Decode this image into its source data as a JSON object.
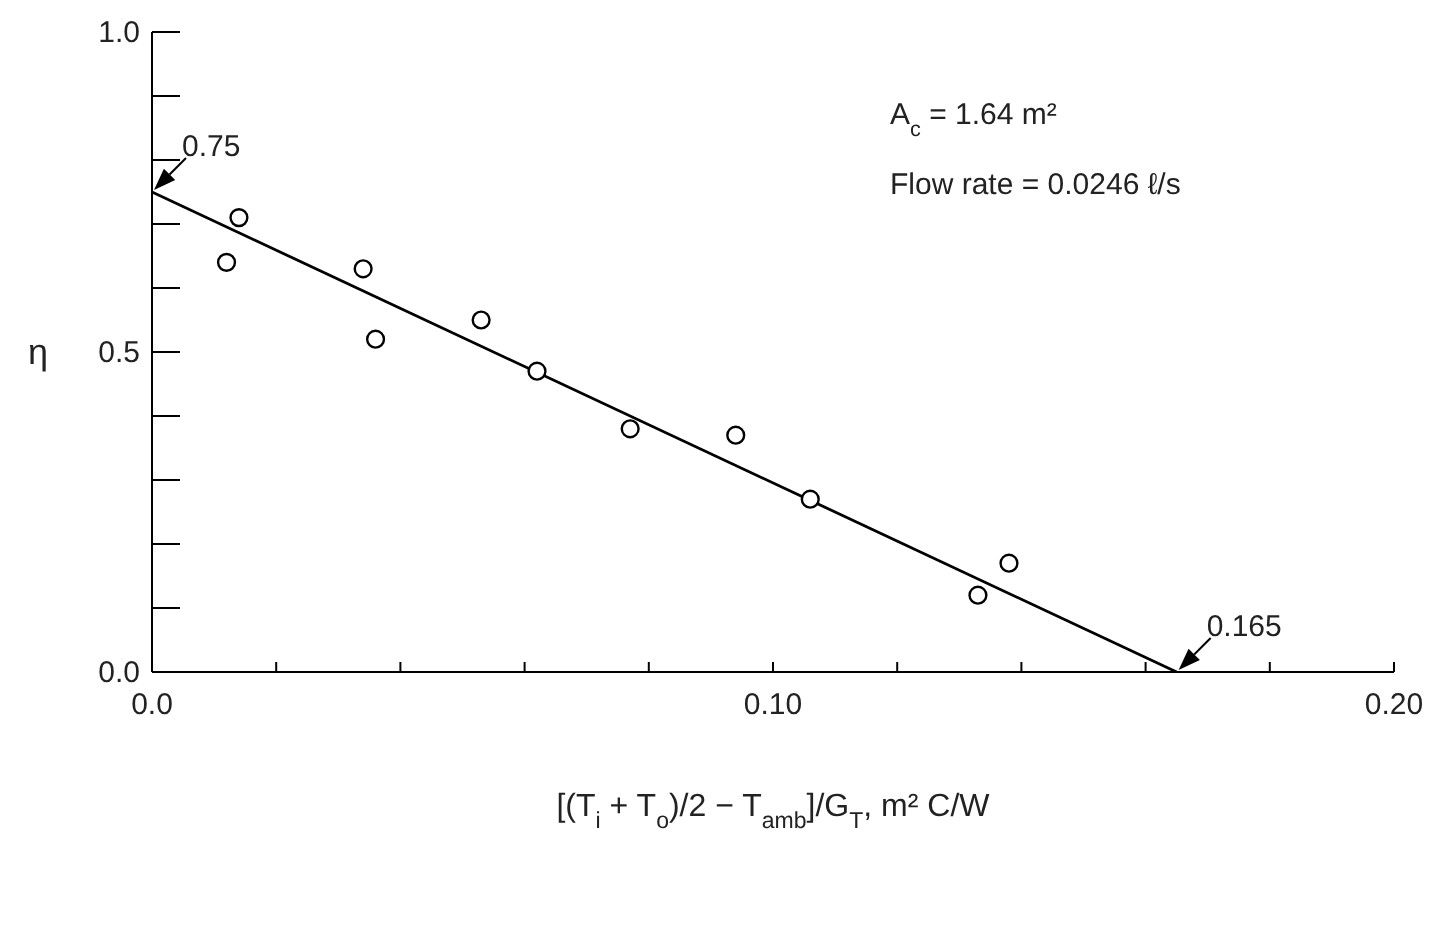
{
  "chart_data": {
    "type": "scatter",
    "xlabel": "[(T$_{i}$ + T$_{o}$)/2 − T$_{amb}$]/G$_{T}$, m² C/W",
    "ylabel": "η",
    "xlim": [
      0,
      0.2
    ],
    "ylim": [
      0,
      1
    ],
    "xticks": [
      {
        "value": 0,
        "label": "0.0"
      },
      {
        "value": 0.02,
        "label": null
      },
      {
        "value": 0.04,
        "label": null
      },
      {
        "value": 0.06,
        "label": null
      },
      {
        "value": 0.08,
        "label": null
      },
      {
        "value": 0.1,
        "label": "0.10"
      },
      {
        "value": 0.12,
        "label": null
      },
      {
        "value": 0.14,
        "label": null
      },
      {
        "value": 0.16,
        "label": null
      },
      {
        "value": 0.18,
        "label": null
      },
      {
        "value": 0.2,
        "label": "0.20"
      }
    ],
    "yticks": [
      {
        "value": 0,
        "label": "0.0"
      },
      {
        "value": 0.1,
        "label": null
      },
      {
        "value": 0.2,
        "label": null
      },
      {
        "value": 0.3,
        "label": null
      },
      {
        "value": 0.4,
        "label": null
      },
      0.5,
      {
        "value": 0.6,
        "label": null
      },
      {
        "value": 0.7,
        "label": null
      },
      {
        "value": 0.8,
        "label": null
      },
      {
        "value": 0.9,
        "label": null
      },
      {
        "value": 1,
        "label": "1.0"
      }
    ],
    "series": [
      {
        "type": "scatter",
        "color": "#000000",
        "marker": "circle",
        "x": [
          0.012,
          0.014,
          0.034,
          0.036,
          0.053,
          0.062,
          0.077,
          0.094,
          0.106,
          0.133,
          0.138
        ],
        "values": [
          0.64,
          0.71,
          0.63,
          0.52,
          0.55,
          0.47,
          0.38,
          0.37,
          0.27,
          0.12,
          0.17
        ]
      },
      {
        "type": "line",
        "color": "#000000",
        "marker": "none",
        "line_style": "solid",
        "x": [
          0,
          0.165
        ],
        "values": [
          0.75,
          0
        ]
      }
    ],
    "annotations": [
      {
        "text": "0.75",
        "x": 0,
        "y": 0.75
      },
      {
        "text": "0.165",
        "x": 0.165,
        "y": 0
      },
      "A$_{c}$ = 1.64 m²",
      "Flow rate = 0.0246 ℓ/s"
    ]
  }
}
